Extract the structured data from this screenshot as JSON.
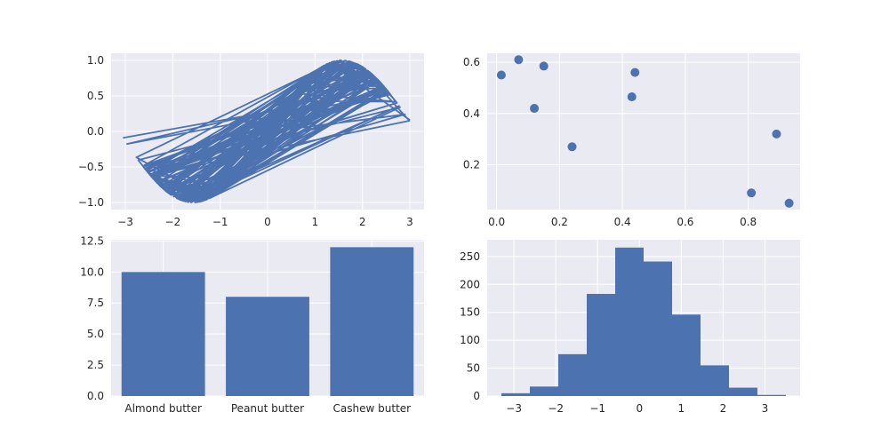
{
  "colors": {
    "face": "#eaeaf2",
    "series": "#4c72b0",
    "grid": "#ffffff",
    "text": "#262626"
  },
  "chart_data": [
    {
      "type": "line",
      "description_of_shape": "parametric curve x=t, y=sin(t) sampled with wrap-around, producing a dense band of overlapping lines",
      "xlim": [
        -3.3,
        3.3
      ],
      "ylim": [
        -1.1,
        1.1
      ],
      "xticks": [
        -3,
        -2,
        -1,
        0,
        1,
        2,
        3
      ],
      "yticks": [
        -1.0,
        -0.5,
        0.0,
        0.5,
        1.0
      ],
      "grid": true
    },
    {
      "type": "scatter",
      "x": [
        0.015,
        0.07,
        0.12,
        0.15,
        0.24,
        0.43,
        0.44,
        0.81,
        0.89,
        0.93
      ],
      "y": [
        0.55,
        0.61,
        0.42,
        0.585,
        0.27,
        0.465,
        0.56,
        0.09,
        0.32,
        0.05
      ],
      "xlim": [
        -0.03,
        0.965
      ],
      "ylim": [
        0.025,
        0.635
      ],
      "xticks": [
        0.0,
        0.2,
        0.4,
        0.6,
        0.8
      ],
      "yticks": [
        0.2,
        0.4,
        0.6
      ],
      "grid": true
    },
    {
      "type": "bar",
      "categories": [
        "Almond butter",
        "Peanut butter",
        "Cashew butter"
      ],
      "values": [
        10,
        8,
        12
      ],
      "ylim": [
        0,
        12.6
      ],
      "yticks": [
        0.0,
        2.5,
        5.0,
        7.5,
        10.0,
        12.5
      ],
      "grid": true
    },
    {
      "type": "bar",
      "subtype": "histogram",
      "bin_edges": [
        -3.3,
        -2.62,
        -1.94,
        -1.26,
        -0.58,
        0.1,
        0.78,
        1.46,
        2.14,
        2.82,
        3.5
      ],
      "counts": [
        5,
        17,
        75,
        183,
        266,
        241,
        146,
        55,
        15,
        2
      ],
      "xlim": [
        -3.64,
        3.84
      ],
      "ylim": [
        0,
        280
      ],
      "xticks": [
        -3,
        -2,
        -1,
        0,
        1,
        2,
        3
      ],
      "yticks": [
        0,
        50,
        100,
        150,
        200,
        250
      ],
      "grid": true
    }
  ]
}
